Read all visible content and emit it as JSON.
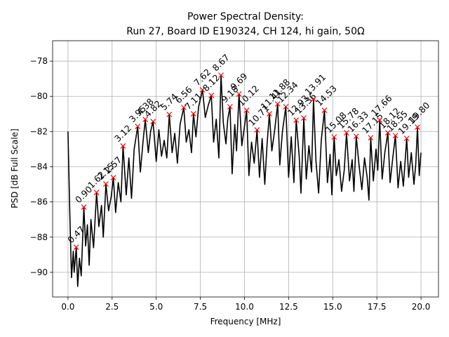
{
  "chart_data": {
    "type": "line",
    "title": "Power Spectral Density:",
    "subtitle": "Run 27, Board ID E190324, CH 124, hi gain, 50Ω",
    "x_label": "Frequency [MHz]",
    "y_label": "PSD [dB Full Scale]",
    "xlim": [
      -0.87,
      20.99
    ],
    "ylim": [
      -91.4,
      -76.84
    ],
    "xticks": [
      {
        "value": 0,
        "label": "0.0"
      },
      {
        "value": 2.5,
        "label": "2.5"
      },
      {
        "value": 5,
        "label": "5.0"
      },
      {
        "value": 7.5,
        "label": "7.5"
      },
      {
        "value": 10,
        "label": "10.0"
      },
      {
        "value": 12.5,
        "label": "12.5"
      },
      {
        "value": 15,
        "label": "15.0"
      },
      {
        "value": 17.5,
        "label": "17.5"
      },
      {
        "value": 20,
        "label": "20.0"
      }
    ],
    "yticks": [
      {
        "value": -90,
        "label": "−90"
      },
      {
        "value": -88,
        "label": "−88"
      },
      {
        "value": -86,
        "label": "−86"
      },
      {
        "value": -84,
        "label": "−84"
      },
      {
        "value": -82,
        "label": "−82"
      },
      {
        "value": -80,
        "label": "−80"
      },
      {
        "value": -78,
        "label": "−78"
      }
    ],
    "grid": true,
    "series": [
      {
        "color": "#000000",
        "x": [
          0.0,
          0.1,
          0.2,
          0.3,
          0.35,
          0.47,
          0.55,
          0.65,
          0.75,
          0.9,
          1.0,
          1.1,
          1.2,
          1.3,
          1.45,
          1.62,
          1.75,
          1.9,
          2.0,
          2.15,
          2.3,
          2.45,
          2.57,
          2.7,
          2.85,
          3.0,
          3.12,
          3.3,
          3.45,
          3.6,
          3.75,
          3.95,
          4.1,
          4.25,
          4.38,
          4.55,
          4.68,
          4.82,
          5.0,
          5.15,
          5.3,
          5.45,
          5.6,
          5.74,
          5.9,
          6.05,
          6.2,
          6.35,
          6.56,
          6.7,
          6.85,
          7.0,
          7.11,
          7.25,
          7.4,
          7.62,
          7.78,
          7.95,
          8.12,
          8.25,
          8.4,
          8.55,
          8.67,
          8.8,
          8.95,
          9.05,
          9.18,
          9.3,
          9.45,
          9.55,
          9.69,
          9.85,
          10.0,
          10.12,
          10.25,
          10.4,
          10.55,
          10.71,
          10.85,
          11.0,
          11.15,
          11.28,
          11.41,
          11.55,
          11.7,
          11.88,
          12.0,
          12.15,
          12.34,
          12.5,
          12.65,
          12.8,
          12.93,
          13.1,
          13.2,
          13.36,
          13.5,
          13.65,
          13.8,
          13.91,
          14.05,
          14.2,
          14.35,
          14.53,
          14.7,
          14.85,
          14.95,
          15.08,
          15.2,
          15.35,
          15.5,
          15.65,
          15.78,
          15.95,
          16.1,
          16.2,
          16.33,
          16.5,
          16.65,
          16.8,
          16.95,
          17.05,
          17.15,
          17.3,
          17.45,
          17.55,
          17.66,
          17.8,
          17.95,
          18.12,
          18.25,
          18.4,
          18.55,
          18.7,
          18.85,
          19.0,
          19.19,
          19.3,
          19.45,
          19.6,
          19.7,
          19.8,
          19.9,
          20.0
        ],
        "values": [
          -82.0,
          -86.5,
          -90.3,
          -88.8,
          -90.0,
          -88.57,
          -90.8,
          -89.2,
          -90.2,
          -86.29,
          -88.5,
          -87.3,
          -89.6,
          -87.0,
          -88.6,
          -85.46,
          -87.4,
          -86.2,
          -88.0,
          -84.98,
          -86.5,
          -85.7,
          -84.62,
          -86.6,
          -84.9,
          -86.0,
          -82.82,
          -85.6,
          -83.5,
          -85.8,
          -83.0,
          -81.71,
          -84.3,
          -82.6,
          -81.31,
          -83.2,
          -82.0,
          -81.43,
          -83.7,
          -81.9,
          -83.4,
          -82.5,
          -83.5,
          -81.03,
          -83.2,
          -82.1,
          -83.8,
          -81.6,
          -80.63,
          -82.6,
          -81.9,
          -83.2,
          -80.99,
          -82.3,
          -80.6,
          -79.63,
          -81.2,
          -80.5,
          -79.95,
          -82.6,
          -81.3,
          -83.5,
          -78.8,
          -81.5,
          -82.7,
          -81.3,
          -80.59,
          -84.4,
          -81.6,
          -83.1,
          -79.87,
          -82.8,
          -81.7,
          -80.79,
          -84.5,
          -82.6,
          -83.8,
          -81.91,
          -84.6,
          -82.4,
          -85.0,
          -82.7,
          -80.99,
          -83.1,
          -82.0,
          -80.43,
          -83.9,
          -82.0,
          -80.59,
          -84.6,
          -82.3,
          -84.9,
          -81.35,
          -83.4,
          -85.5,
          -81.23,
          -84.7,
          -82.8,
          -84.3,
          -80.15,
          -83.7,
          -85.5,
          -82.5,
          -80.79,
          -84.9,
          -83.3,
          -85.6,
          -82.31,
          -84.5,
          -83.6,
          -85.4,
          -84.2,
          -82.07,
          -84.8,
          -83.6,
          -85.4,
          -82.27,
          -84.0,
          -85.3,
          -83.5,
          -84.6,
          -85.9,
          -82.35,
          -84.8,
          -83.0,
          -84.2,
          -81.35,
          -84.7,
          -83.2,
          -82.07,
          -84.9,
          -83.5,
          -82.23,
          -85.2,
          -83.7,
          -85.1,
          -82.39,
          -84.6,
          -83.2,
          -85.0,
          -83.9,
          -81.75,
          -84.5,
          -83.2
        ]
      },
      {
        "color": "#ff0000",
        "marker": "x",
        "x": [
          0.47,
          0.9,
          1.62,
          2.15,
          2.57,
          3.12,
          3.95,
          4.38,
          4.82,
          5.74,
          6.56,
          7.11,
          7.62,
          8.12,
          8.67,
          9.18,
          9.69,
          10.12,
          10.71,
          11.41,
          11.88,
          12.34,
          12.93,
          13.36,
          13.91,
          14.53,
          15.08,
          15.78,
          16.33,
          17.15,
          17.66,
          18.12,
          18.55,
          19.19,
          19.8
        ],
        "x_labels": [
          "0.47",
          "0.90",
          "1.62",
          "2.15",
          "2.57",
          "3.12",
          "3.95",
          "4.38",
          "4.82",
          "5.74",
          "6.56",
          "7.11",
          "7.62",
          "8.12",
          "8.67",
          "9.18",
          "9.69",
          "10.12",
          "10.71",
          "11.41",
          "11.88",
          "12.34",
          "12.93",
          "13.36",
          "13.91",
          "14.53",
          "15.08",
          "15.78",
          "16.33",
          "17.15",
          "17.66",
          "18.12",
          "18.55",
          "19.19",
          "19.80"
        ],
        "values": [
          -88.57,
          -86.29,
          -85.46,
          -84.98,
          -84.62,
          -82.82,
          -81.71,
          -81.31,
          -81.43,
          -81.03,
          -80.63,
          -80.99,
          -79.63,
          -79.95,
          -78.8,
          -80.59,
          -79.87,
          -80.79,
          -81.91,
          -80.99,
          -80.43,
          -80.59,
          -81.35,
          -81.23,
          -80.15,
          -80.79,
          -82.31,
          -82.07,
          -82.27,
          -82.35,
          -81.35,
          -82.07,
          -82.23,
          -82.39,
          -81.75
        ]
      }
    ]
  }
}
